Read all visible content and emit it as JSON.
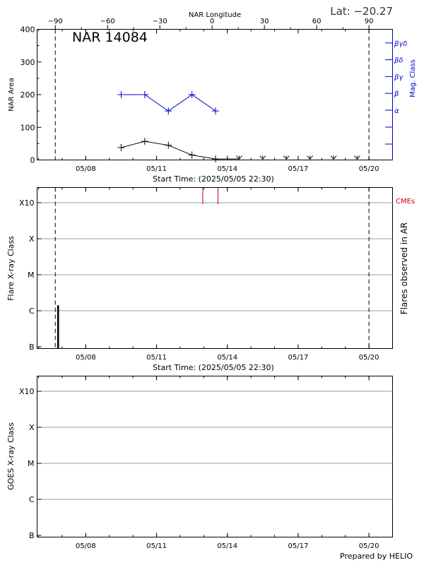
{
  "header": {
    "lat_text": "Lat: −20.27",
    "nar_label": "NAR 14084",
    "prepared_by": "Prepared by HELIO"
  },
  "colors": {
    "axis": "#000000",
    "mag_class": "#0000cc",
    "cmes": "#cc0000",
    "grid": "#999999"
  },
  "shared": {
    "x_tick_labels": [
      "05/08",
      "05/11",
      "05/14",
      "05/17",
      "05/20"
    ],
    "x_tick_dates": [
      "2025-05-08",
      "2025-05-11",
      "2025-05-14",
      "2025-05-17",
      "2025-05-20"
    ],
    "xlabel": "Start Time: (2025/05/05 22:30)",
    "xlim": [
      "2025-05-05 22:30",
      "2025-05-21 00:00"
    ],
    "event_dates": [
      "2025-05-06 17:00",
      "2025-05-20 00:00"
    ]
  },
  "chart_data": [
    {
      "type": "line",
      "name_label": "NAR 14084",
      "top_axis": {
        "title": "NAR Longitude",
        "ticks": [
          -90,
          -60,
          -30,
          0,
          30,
          60,
          90
        ],
        "tick_labels": [
          "−90",
          "−60",
          "−30",
          "0",
          "30",
          "60",
          "90"
        ]
      },
      "ylabel": "NAR Area",
      "ylim": [
        0,
        400
      ],
      "yticks": [
        0,
        100,
        200,
        300,
        400
      ],
      "right_axis": {
        "title": "Mag. Class",
        "tick_labels": [
          "α",
          "β",
          "βγ",
          "βδ",
          "βγδ"
        ]
      },
      "series": [
        {
          "name": "NAR Area",
          "points": [
            {
              "date": "2025-05-09 12:00",
              "value": 38
            },
            {
              "date": "2025-05-10 12:00",
              "value": 57
            },
            {
              "date": "2025-05-11 12:00",
              "value": 45
            },
            {
              "date": "2025-05-12 12:00",
              "value": 15
            },
            {
              "date": "2025-05-13 12:00",
              "value": 3
            }
          ],
          "down_arrow_dates": [
            "2025-05-14 12:00",
            "2025-05-15 12:00",
            "2025-05-16 12:00",
            "2025-05-17 12:00",
            "2025-05-18 12:00",
            "2025-05-19 12:00"
          ]
        },
        {
          "name": "Mag. Class",
          "points": [
            {
              "date": "2025-05-09 12:00",
              "value": 200
            },
            {
              "date": "2025-05-10 12:00",
              "value": 200
            },
            {
              "date": "2025-05-11 12:00",
              "value": 150
            },
            {
              "date": "2025-05-12 12:00",
              "value": 200
            },
            {
              "date": "2025-05-13 12:00",
              "value": 150
            }
          ]
        }
      ]
    },
    {
      "type": "bar",
      "ylabel": "Flare X-ray Class",
      "right_label": "Flares observed in AR",
      "cme_label": "CMEs",
      "class_labels": [
        "B",
        "C",
        "M",
        "X",
        "X10"
      ],
      "flares": [
        {
          "date": "2025-05-06 17:00",
          "class_index": 1.15
        }
      ],
      "cme_dates": [
        "2025-05-12 23:00",
        "2025-05-13 14:30"
      ]
    },
    {
      "type": "line",
      "ylabel": "GOES X-ray Class",
      "class_labels": [
        "B",
        "C",
        "M",
        "X",
        "X10"
      ],
      "series": []
    }
  ]
}
